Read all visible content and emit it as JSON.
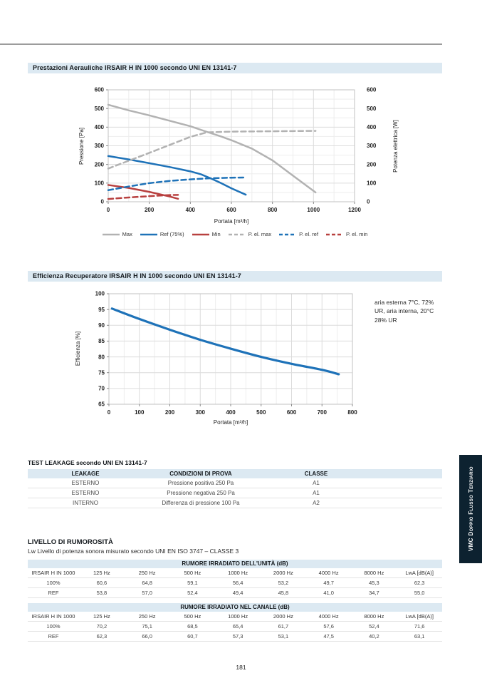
{
  "page": {
    "number": "181"
  },
  "side_tab": {
    "label": "VMC Doppio Flusso Terziario",
    "bg": "#0d2230"
  },
  "sections": {
    "aeraulic_title": "Prestazioni Aerauliche IRSAIR H IN 1000 secondo UNI EN 13141-7",
    "efficiency_title": "Efficienza Recuperatore IRSAIR H IN 1000 secondo UNI EN 13141-7"
  },
  "colors": {
    "band_bg": "#dce9f2",
    "series_gray": "#b2b2b2",
    "series_blue": "#1e72b8",
    "series_red": "#b8403f",
    "grid_minor": "#ededed",
    "grid_major": "#dcdcdc",
    "plot_border": "#c2c2c2"
  },
  "chart_data": [
    {
      "type": "line",
      "title": "Prestazioni Aerauliche IRSAIR H IN 1000 secondo UNI EN 13141-7",
      "xlabel": "Portata [m³/h]",
      "ylabel_left": "Pressione [Pa]",
      "ylabel_right": "Potenza elettrica [W]",
      "xlim": [
        0,
        1200
      ],
      "ylim": [
        0,
        600
      ],
      "xticks": [
        0,
        200,
        400,
        600,
        800,
        1000,
        1200
      ],
      "yticks": [
        0,
        100,
        200,
        300,
        400,
        500,
        600
      ],
      "grid": true,
      "legend_position": "bottom",
      "series": [
        {
          "name": "Max",
          "color": "#b2b2b2",
          "dash": false,
          "points": [
            [
              0,
              520
            ],
            [
              100,
              490
            ],
            [
              200,
              463
            ],
            [
              300,
              434
            ],
            [
              400,
              405
            ],
            [
              480,
              375
            ],
            [
              550,
              350
            ],
            [
              600,
              330
            ],
            [
              700,
              285
            ],
            [
              800,
              222
            ],
            [
              900,
              140
            ],
            [
              1010,
              50
            ]
          ]
        },
        {
          "name": "Ref (75%)",
          "color": "#1e72b8",
          "dash": false,
          "points": [
            [
              0,
              245
            ],
            [
              100,
              227
            ],
            [
              200,
              207
            ],
            [
              300,
              186
            ],
            [
              400,
              163
            ],
            [
              450,
              148
            ],
            [
              500,
              125
            ],
            [
              550,
              100
            ],
            [
              600,
              72
            ],
            [
              670,
              38
            ]
          ]
        },
        {
          "name": "Min",
          "color": "#b8403f",
          "dash": false,
          "points": [
            [
              0,
              90
            ],
            [
              100,
              74
            ],
            [
              200,
              53
            ],
            [
              300,
              28
            ],
            [
              340,
              16
            ]
          ]
        },
        {
          "name": "P. el. max",
          "color": "#b2b2b2",
          "dash": true,
          "points": [
            [
              0,
              178
            ],
            [
              100,
              220
            ],
            [
              200,
              262
            ],
            [
              300,
              305
            ],
            [
              400,
              348
            ],
            [
              480,
              372
            ],
            [
              600,
              376
            ],
            [
              800,
              378
            ],
            [
              900,
              379
            ],
            [
              1010,
              380
            ]
          ]
        },
        {
          "name": "P. el. ref",
          "color": "#1e72b8",
          "dash": true,
          "points": [
            [
              0,
              62
            ],
            [
              100,
              82
            ],
            [
              200,
              100
            ],
            [
              300,
              112
            ],
            [
              400,
              120
            ],
            [
              500,
              126
            ],
            [
              600,
              129
            ],
            [
              670,
              130
            ]
          ]
        },
        {
          "name": "P. el. min",
          "color": "#b8403f",
          "dash": true,
          "points": [
            [
              0,
              15
            ],
            [
              100,
              23
            ],
            [
              200,
              30
            ],
            [
              300,
              36
            ],
            [
              340,
              37
            ]
          ]
        }
      ]
    },
    {
      "type": "line",
      "title": "Efficienza Recuperatore IRSAIR H IN 1000 secondo UNI EN 13141-7",
      "xlabel": "Portata [m³/h]",
      "ylabel_left": "Efficienza [%]",
      "xlim": [
        0,
        800
      ],
      "ylim": [
        65,
        100
      ],
      "xticks": [
        0,
        100,
        200,
        300,
        400,
        500,
        600,
        700,
        800
      ],
      "yticks": [
        65,
        70,
        75,
        80,
        85,
        90,
        95,
        100
      ],
      "grid": true,
      "annotation": "aria esterna 7°C, 72% UR, aria interna, 20°C 28% UR",
      "series": [
        {
          "name": "Efficienza",
          "color": "#1e72b8",
          "dash": false,
          "smooth": true,
          "points": [
            [
              10,
              95.3
            ],
            [
              100,
              92.0
            ],
            [
              200,
              88.6
            ],
            [
              300,
              85.4
            ],
            [
              400,
              82.6
            ],
            [
              500,
              80.0
            ],
            [
              600,
              77.8
            ],
            [
              700,
              75.9
            ],
            [
              755,
              74.5
            ]
          ]
        }
      ]
    }
  ],
  "leakage": {
    "title": "TEST LEAKAGE secondo UNI EN 13141-7",
    "headers": [
      "LEAKAGE",
      "CONDIZIONI DI PROVA",
      "CLASSE"
    ],
    "rows": [
      [
        "ESTERNO",
        "Pressione positiva 250 Pa",
        "A1"
      ],
      [
        "ESTERNO",
        "Pressione negativa 250 Pa",
        "A1"
      ],
      [
        "INTERNO",
        "Differenza di pressione 100 Pa",
        "A2"
      ]
    ]
  },
  "noise": {
    "title": "LIVELLO DI RUMOROSITÀ",
    "subtitle": "Lw Livello di potenza sonora misurato secondo UNI EN ISO 3747 – CLASSE 3",
    "tables": [
      {
        "band_title": "RUMORE IRRADIATO DELL'UNITÀ (dB)",
        "headers": [
          "IRSAIR H IN 1000",
          "125 Hz",
          "250 Hz",
          "500 Hz",
          "1000 Hz",
          "2000 Hz",
          "4000 Hz",
          "8000 Hz",
          "LwA [dB(A)]"
        ],
        "rows": [
          [
            "100%",
            "60,6",
            "64,8",
            "59,1",
            "56,4",
            "53,2",
            "49,7",
            "45,3",
            "62,3"
          ],
          [
            "REF",
            "53,8",
            "57,0",
            "52,4",
            "49,4",
            "45,8",
            "41,0",
            "34,7",
            "55,0"
          ]
        ]
      },
      {
        "band_title": "RUMORE IRRADIATO NEL CANALE (dB)",
        "headers": [
          "IRSAIR H IN 1000",
          "125 Hz",
          "250 Hz",
          "500 Hz",
          "1000 Hz",
          "2000 Hz",
          "4000 Hz",
          "8000 Hz",
          "LwA [dB(A)]"
        ],
        "rows": [
          [
            "100%",
            "70,2",
            "75,1",
            "68,5",
            "65,4",
            "61,7",
            "57,6",
            "52,4",
            "71,6"
          ],
          [
            "REF",
            "62,3",
            "66,0",
            "60,7",
            "57,3",
            "53,1",
            "47,5",
            "40,2",
            "63,1"
          ]
        ]
      }
    ]
  }
}
